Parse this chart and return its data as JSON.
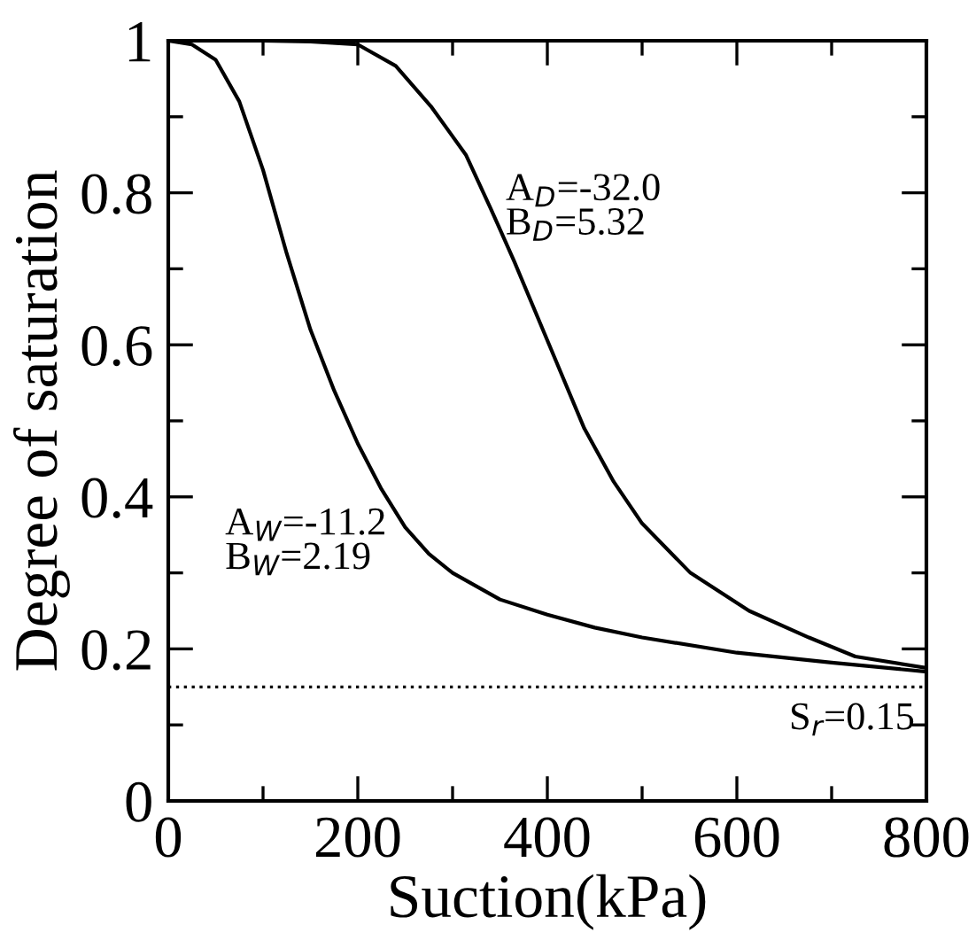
{
  "chart_data": {
    "type": "line",
    "xlabel": "Suction(kPa)",
    "ylabel": "Degree of saturation",
    "xlim": [
      0,
      800
    ],
    "ylim": [
      0,
      1
    ],
    "xticks": [
      0,
      {
        "value": 100,
        "label": null
      },
      200,
      {
        "value": 300,
        "label": null
      },
      400,
      {
        "value": 500,
        "label": null
      },
      600,
      {
        "value": 700,
        "label": null
      },
      800
    ],
    "yticks": [
      0,
      {
        "value": 0.1,
        "label": null
      },
      0.2,
      {
        "value": 0.3,
        "label": null
      },
      0.4,
      {
        "value": 0.5,
        "label": null
      },
      0.6,
      {
        "value": 0.7,
        "label": null
      },
      0.8,
      {
        "value": 0.9,
        "label": null
      },
      1
    ],
    "series": [
      {
        "color": "#000000",
        "x": [
          0,
          25,
          50,
          75,
          100,
          125,
          150,
          175,
          200,
          225,
          250,
          275,
          300,
          350,
          400,
          450,
          500,
          600,
          700,
          800
        ],
        "values": [
          1.0,
          0.995,
          0.975,
          0.92,
          0.83,
          0.72,
          0.62,
          0.54,
          0.47,
          0.41,
          0.36,
          0.325,
          0.3,
          0.265,
          0.245,
          0.228,
          0.215,
          0.195,
          0.182,
          0.17
        ]
      },
      {
        "color": "#000000",
        "x": [
          0,
          100,
          150,
          200,
          240,
          277,
          314,
          340,
          365,
          402,
          439,
          470,
          500,
          551,
          613,
          676,
          725,
          800
        ],
        "values": [
          1.0,
          1.0,
          0.999,
          0.995,
          0.967,
          0.914,
          0.85,
          0.78,
          0.71,
          0.6,
          0.49,
          0.42,
          0.365,
          0.3,
          0.25,
          0.215,
          0.19,
          0.175
        ]
      }
    ],
    "ref_lines": [
      {
        "axis": "y",
        "value": 0.15,
        "label": "S$_{r}$=0.15",
        "line_style": "dotted",
        "color": "#000000"
      }
    ],
    "annotations": [
      "A$_{D}$=-32.0\nB$_{D}$=5.32",
      "A$_{W}$=-11.2\nB$_{W}$=2.19"
    ],
    "line_style": "solid",
    "marker": "none",
    "grid": false,
    "legend": false
  }
}
